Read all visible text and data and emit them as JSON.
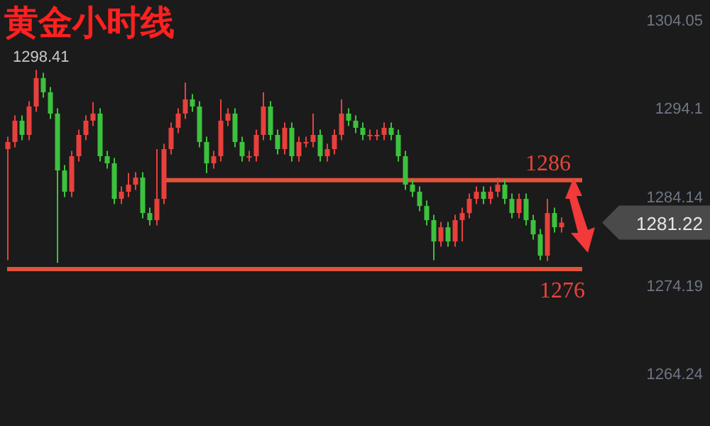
{
  "chart_data": {
    "type": "candlestick",
    "title": "黄金小时线",
    "categories": [
      null,
      null,
      null,
      null,
      null,
      null,
      null,
      null,
      null,
      null,
      null,
      null,
      null,
      null,
      null,
      null,
      null,
      null,
      null,
      null,
      null,
      null,
      null,
      null,
      null,
      null,
      null,
      null,
      null,
      null,
      null,
      null,
      null,
      null,
      null,
      null,
      null,
      null,
      null,
      null,
      null,
      null,
      null,
      null,
      null,
      null,
      null,
      null,
      null,
      null,
      null,
      null,
      null,
      null,
      null,
      null,
      null,
      null,
      null,
      null,
      null,
      null,
      null,
      null,
      null,
      null,
      null,
      null,
      null,
      null,
      null,
      null,
      null,
      null,
      null,
      null,
      null,
      null,
      null
    ],
    "ohlc": [
      [
        1289.5,
        1290.9,
        1277.0,
        1290.3
      ],
      [
        1290.3,
        1293.3,
        1289.7,
        1292.7
      ],
      [
        1292.7,
        1293.3,
        1290.5,
        1291.1
      ],
      [
        1291.1,
        1294.9,
        1290.5,
        1294.3
      ],
      [
        1294.3,
        1298.41,
        1293.7,
        1297.5
      ],
      [
        1297.5,
        1298.1,
        1295.3,
        1295.9
      ],
      [
        1295.9,
        1296.5,
        1292.9,
        1293.5
      ],
      [
        1293.5,
        1294.1,
        1276.7,
        1287.1
      ],
      [
        1287.1,
        1287.7,
        1284.1,
        1284.7
      ],
      [
        1284.7,
        1289.3,
        1284.1,
        1288.7
      ],
      [
        1288.7,
        1291.7,
        1288.1,
        1291.1
      ],
      [
        1291.1,
        1293.3,
        1290.5,
        1292.7
      ],
      [
        1292.7,
        1294.8,
        1292.1,
        1293.5
      ],
      [
        1293.5,
        1294.1,
        1288.1,
        1288.7
      ],
      [
        1288.7,
        1289.3,
        1287.3,
        1287.9
      ],
      [
        1287.9,
        1288.5,
        1283.3,
        1283.9
      ],
      [
        1283.9,
        1285.3,
        1283.3,
        1284.7
      ],
      [
        1284.7,
        1286.8,
        1284.1,
        1285.5
      ],
      [
        1285.5,
        1286.9,
        1284.9,
        1286.3
      ],
      [
        1286.3,
        1286.9,
        1281.7,
        1282.3
      ],
      [
        1282.3,
        1282.9,
        1280.9,
        1281.5
      ],
      [
        1281.5,
        1289.5,
        1280.9,
        1283.9
      ],
      [
        1283.9,
        1290.1,
        1283.3,
        1289.5
      ],
      [
        1289.5,
        1292.5,
        1288.9,
        1291.9
      ],
      [
        1291.9,
        1294.1,
        1291.3,
        1293.5
      ],
      [
        1293.5,
        1297.0,
        1292.9,
        1295.1
      ],
      [
        1295.1,
        1295.7,
        1293.7,
        1294.3
      ],
      [
        1294.3,
        1294.9,
        1289.7,
        1290.3
      ],
      [
        1290.3,
        1290.9,
        1286.8,
        1287.9
      ],
      [
        1287.9,
        1289.3,
        1287.3,
        1288.7
      ],
      [
        1288.7,
        1295.1,
        1288.1,
        1292.7
      ],
      [
        1292.7,
        1294.1,
        1292.1,
        1293.5
      ],
      [
        1293.5,
        1294.1,
        1289.7,
        1290.3
      ],
      [
        1290.3,
        1290.9,
        1288.1,
        1288.7
      ],
      [
        1288.7,
        1289.3,
        1288.1,
        1288.7
      ],
      [
        1288.7,
        1291.7,
        1288.1,
        1291.1
      ],
      [
        1291.1,
        1295.9,
        1290.5,
        1294.3
      ],
      [
        1294.3,
        1294.9,
        1290.5,
        1291.1
      ],
      [
        1291.1,
        1291.7,
        1288.9,
        1289.5
      ],
      [
        1289.5,
        1292.5,
        1288.9,
        1291.9
      ],
      [
        1291.9,
        1292.5,
        1288.1,
        1288.7
      ],
      [
        1288.7,
        1290.9,
        1288.1,
        1290.3
      ],
      [
        1290.3,
        1290.9,
        1289.7,
        1290.3
      ],
      [
        1290.3,
        1293.5,
        1289.7,
        1291.1
      ],
      [
        1291.1,
        1291.7,
        1288.1,
        1288.7
      ],
      [
        1288.7,
        1290.1,
        1288.1,
        1289.5
      ],
      [
        1289.5,
        1291.7,
        1288.9,
        1291.1
      ],
      [
        1291.1,
        1295.1,
        1290.5,
        1293.5
      ],
      [
        1293.5,
        1294.1,
        1292.1,
        1292.7
      ],
      [
        1292.7,
        1293.3,
        1291.3,
        1291.9
      ],
      [
        1291.9,
        1292.5,
        1290.5,
        1291.1
      ],
      [
        1291.1,
        1291.7,
        1290.5,
        1291.1
      ],
      [
        1291.1,
        1291.7,
        1290.5,
        1291.1
      ],
      [
        1291.1,
        1292.5,
        1290.5,
        1291.9
      ],
      [
        1291.9,
        1292.5,
        1290.5,
        1291.1
      ],
      [
        1291.1,
        1291.7,
        1288.1,
        1288.7
      ],
      [
        1288.7,
        1289.3,
        1284.9,
        1285.5
      ],
      [
        1285.5,
        1286.1,
        1284.1,
        1284.7
      ],
      [
        1284.7,
        1285.3,
        1282.5,
        1283.1
      ],
      [
        1283.1,
        1283.7,
        1280.9,
        1281.5
      ],
      [
        1281.5,
        1282.1,
        1277.0,
        1279.1
      ],
      [
        1279.1,
        1281.3,
        1278.5,
        1280.7
      ],
      [
        1280.7,
        1281.3,
        1278.5,
        1279.1
      ],
      [
        1279.1,
        1282.1,
        1278.5,
        1281.5
      ],
      [
        1281.5,
        1282.9,
        1279.1,
        1282.3
      ],
      [
        1282.3,
        1284.5,
        1281.7,
        1283.9
      ],
      [
        1283.9,
        1285.3,
        1283.3,
        1284.7
      ],
      [
        1284.7,
        1285.3,
        1283.3,
        1283.9
      ],
      [
        1283.9,
        1285.3,
        1283.3,
        1284.7
      ],
      [
        1284.7,
        1286.3,
        1284.1,
        1285.5
      ],
      [
        1285.5,
        1286.1,
        1283.3,
        1283.9
      ],
      [
        1283.9,
        1284.5,
        1281.7,
        1282.3
      ],
      [
        1282.3,
        1284.5,
        1281.7,
        1283.9
      ],
      [
        1283.9,
        1284.5,
        1280.9,
        1281.5
      ],
      [
        1281.5,
        1282.1,
        1279.3,
        1279.9
      ],
      [
        1279.9,
        1280.5,
        1277.0,
        1277.5
      ],
      [
        1277.5,
        1283.9,
        1276.9,
        1282.3
      ],
      [
        1282.3,
        1282.9,
        1280.1,
        1280.7
      ],
      [
        1280.7,
        1281.8,
        1280.1,
        1281.22
      ]
    ],
    "ylim": [
      1264.24,
      1304.05
    ],
    "yticks": [
      1304.05,
      1294.1,
      1284.14,
      1274.19,
      1264.24
    ],
    "ref_lines": [
      {
        "axis": "y",
        "value": 1286,
        "label": "1286",
        "color": "#e0533c"
      },
      {
        "axis": "y",
        "value": 1276,
        "label": "1276",
        "color": "#e0533c"
      }
    ],
    "annotations": [
      {
        "text": "1298.41",
        "y": 1298.41
      },
      "1281.22"
    ]
  }
}
